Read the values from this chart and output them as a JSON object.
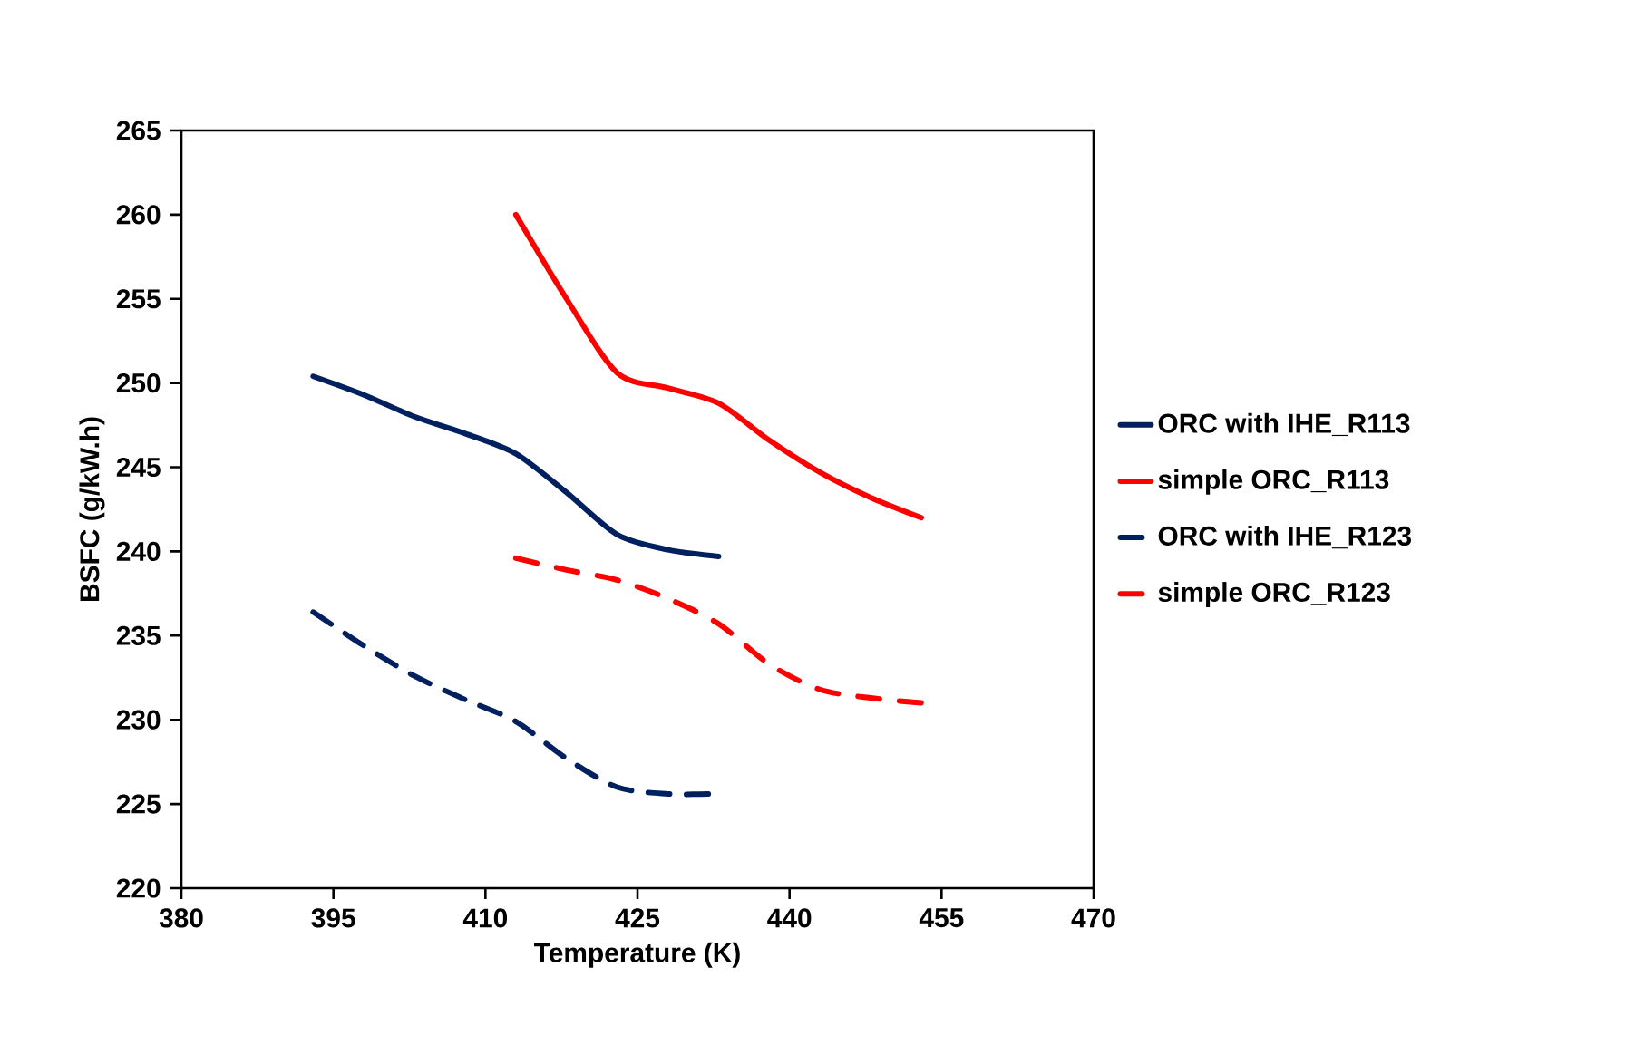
{
  "chart_data": {
    "type": "line",
    "xlabel": "Temperature (K)",
    "ylabel": "BSFC (g/kW.h)",
    "xlim": [
      380,
      470
    ],
    "xticks": [
      380,
      395,
      410,
      425,
      440,
      455,
      470
    ],
    "ylim": [
      220,
      265
    ],
    "yticks": [
      220,
      225,
      230,
      235,
      240,
      245,
      250,
      255,
      260,
      265
    ],
    "grid": false,
    "legend": "right",
    "marker": "none",
    "series": [
      {
        "name": "ORC with IHE_R113",
        "color": "#002060",
        "line_style": "solid",
        "x": [
          393,
          398,
          403,
          408,
          413,
          418,
          423,
          428,
          433
        ],
        "values": [
          250.4,
          249.3,
          248.0,
          247.0,
          245.8,
          243.5,
          241.0,
          240.1,
          239.7
        ]
      },
      {
        "name": "simple ORC_R113",
        "color": "#ff0000",
        "line_style": "solid",
        "x": [
          413,
          418,
          423,
          428,
          433,
          438,
          443,
          448,
          453
        ],
        "values": [
          260.0,
          255.0,
          250.6,
          249.7,
          248.8,
          246.6,
          244.7,
          243.2,
          242.0
        ]
      },
      {
        "name": "ORC with IHE_R123",
        "color": "#002060",
        "line_style": "dashed",
        "x": [
          393,
          398,
          403,
          408,
          413,
          418,
          423,
          428,
          432
        ],
        "values": [
          236.4,
          234.4,
          232.6,
          231.2,
          229.9,
          227.7,
          226.0,
          225.6,
          225.6
        ]
      },
      {
        "name": "simple ORC_R123",
        "color": "#ff0000",
        "line_style": "dashed",
        "x": [
          413,
          418,
          423,
          428,
          433,
          438,
          443,
          448,
          453
        ],
        "values": [
          239.6,
          238.9,
          238.3,
          237.2,
          235.7,
          233.3,
          231.8,
          231.3,
          231.0
        ]
      }
    ]
  }
}
